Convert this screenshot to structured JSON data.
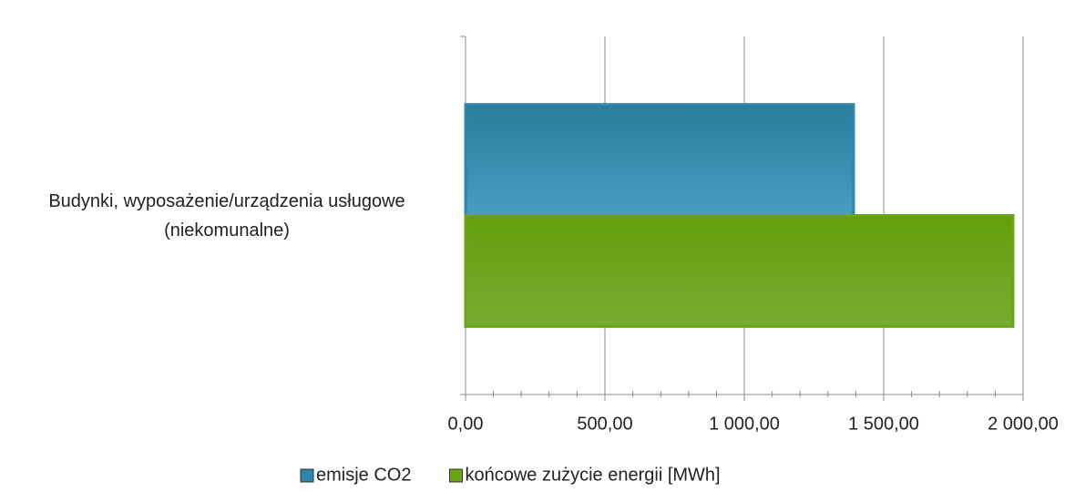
{
  "chart_data": {
    "type": "hbar",
    "categories": [
      "Budynki, wyposażenie/urządzenia usługowe (niekomunalne)"
    ],
    "series": [
      {
        "name": "emisje CO2",
        "color": "#2e86ab",
        "values": [
          1392
        ]
      },
      {
        "name": "końcowe zużycie energii [MWh]",
        "color": "#6aa516",
        "values": [
          1964
        ]
      }
    ],
    "xlim": [
      0,
      2000
    ],
    "xticks": [
      {
        "value": 0,
        "label": "0,00"
      },
      {
        "value": 500,
        "label": "500,00"
      },
      {
        "value": 1000,
        "label": "1 000,00"
      },
      {
        "value": 1500,
        "label": "1 500,00"
      },
      {
        "value": 2000,
        "label": "2 000,00"
      }
    ],
    "grid": true,
    "legend": "bottom"
  }
}
